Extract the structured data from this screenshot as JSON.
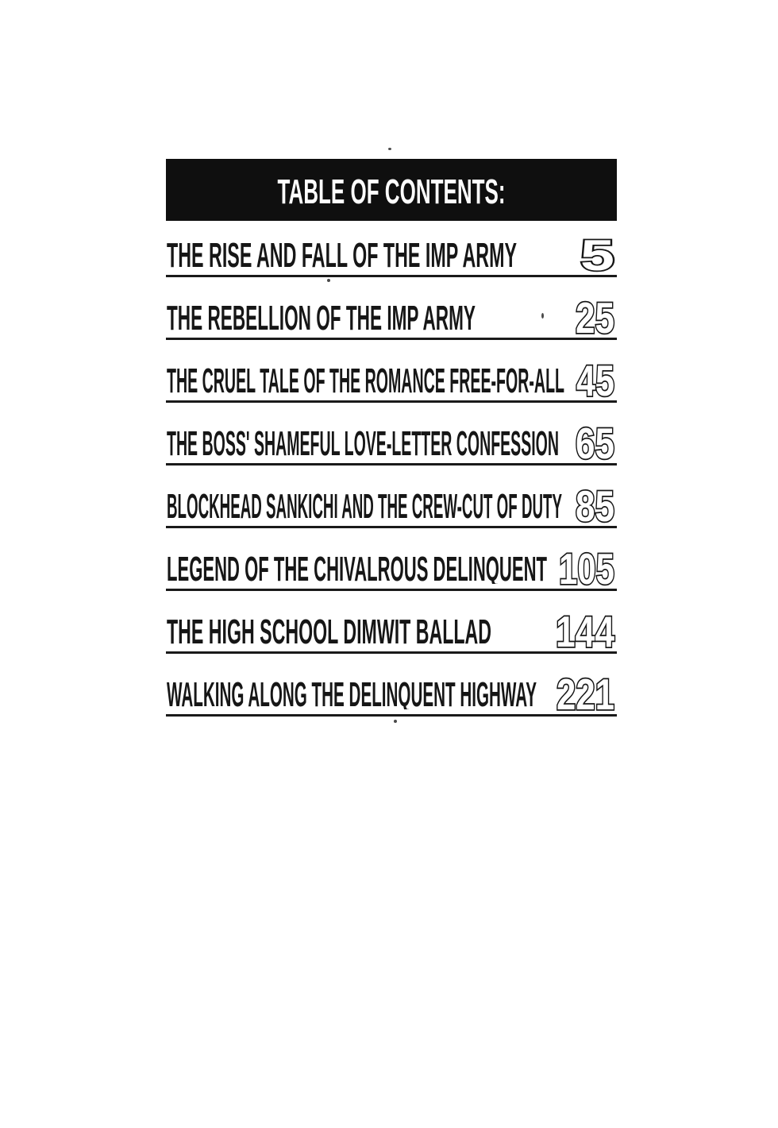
{
  "page": {
    "header": {
      "title": "TABLE OF CONTENTS:"
    },
    "entries": [
      {
        "title": "THE RISE AND FALL OF THE IMP ARMY",
        "page": "5"
      },
      {
        "title": "THE REBELLION OF THE IMP ARMY",
        "page": "25"
      },
      {
        "title": "THE CRUEL TALE OF THE ROMANCE FREE-FOR-ALL",
        "page": "45"
      },
      {
        "title": "THE BOSS' SHAMEFUL LOVE-LETTER CONFESSION",
        "page": "65"
      },
      {
        "title": "BLOCKHEAD SANKICHI AND THE CREW-CUT OF DUTY",
        "page": "85"
      },
      {
        "title": "LEGEND OF THE CHIVALROUS DELINQUENT",
        "page": "105"
      },
      {
        "title": "THE HIGH SCHOOL DIMWIT BALLAD",
        "page": "144"
      },
      {
        "title": "WALKING ALONG THE DELINQUENT HIGHWAY",
        "page": "221"
      }
    ],
    "colors": {
      "paper": "#ffffff",
      "ink": "#161616",
      "header_bg": "#0f0f0f",
      "header_text": "#fdfdfd"
    }
  }
}
